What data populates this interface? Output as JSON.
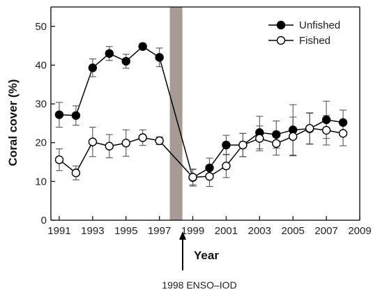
{
  "chart_data": {
    "type": "line",
    "xlabel": "Year",
    "ylabel": "Coral cover (%)",
    "xlim": [
      1990.5,
      2009
    ],
    "ylim": [
      0,
      55
    ],
    "xticks": [
      1991,
      1993,
      1995,
      1997,
      1999,
      2001,
      2003,
      2005,
      2007,
      2009
    ],
    "yticks": [
      0,
      10,
      20,
      30,
      40,
      50
    ],
    "grid": false,
    "legend_position": "top-right",
    "series": [
      {
        "name": "Unfished",
        "marker": "filled-circle",
        "color": "#000000",
        "x": [
          1991,
          1992,
          1993,
          1994,
          1995,
          1996,
          1997,
          1999,
          2000,
          2001,
          2002,
          2003,
          2004,
          2005,
          2006,
          2007,
          2008
        ],
        "y": [
          27.2,
          27,
          39.3,
          43,
          41,
          44.8,
          42,
          11,
          13.5,
          19.4,
          19.4,
          22.6,
          22.1,
          23.3,
          23.6,
          25.9,
          25.2
        ],
        "err": [
          3.2,
          2.5,
          2.3,
          1.8,
          1.8,
          0.8,
          2.4,
          2.2,
          2.5,
          2.5,
          3,
          4.2,
          3.5,
          6.5,
          4,
          4.8,
          3.2
        ]
      },
      {
        "name": "Fished",
        "marker": "open-circle",
        "color": "#000000",
        "x": [
          1991,
          1992,
          1993,
          1994,
          1995,
          1996,
          1997,
          1999,
          2000,
          2001,
          2002,
          2003,
          2004,
          2005,
          2006,
          2007,
          2008
        ],
        "y": [
          15.6,
          12.2,
          20.2,
          19.1,
          19.9,
          21.3,
          20.5,
          11.1,
          11.3,
          14,
          19.4,
          21.1,
          19.8,
          21.6,
          23.7,
          23.2,
          22.4
        ],
        "err": [
          2.8,
          1.8,
          3.8,
          3,
          3.4,
          2,
          1,
          2,
          2.6,
          3,
          3,
          3.2,
          3,
          5,
          4,
          3.8,
          3.2
        ]
      }
    ],
    "event_band": {
      "year": 1998
    },
    "annotation": "1998 ENSO–IOD"
  }
}
